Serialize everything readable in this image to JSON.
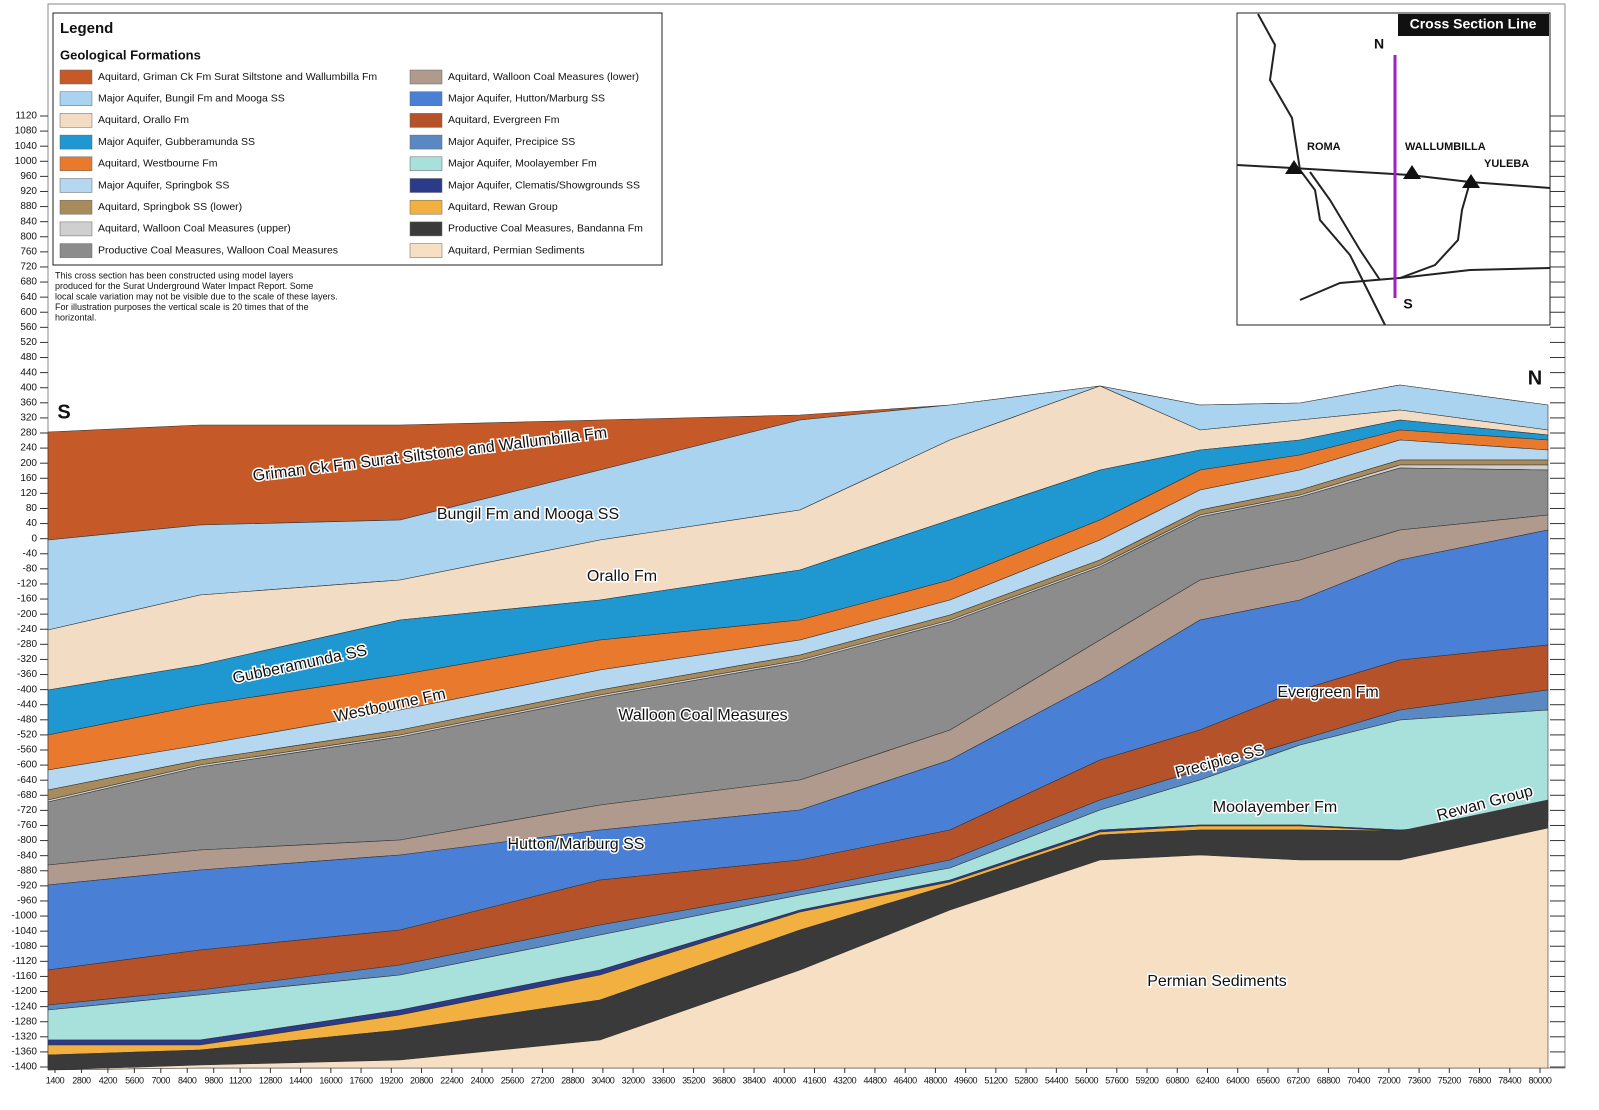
{
  "legend": {
    "title": "Legend",
    "heading": "Geological Formations",
    "items": [
      {
        "label": "Aquitard, Griman Ck Fm  Surat Siltstone and Wallumbilla Fm",
        "color": "#c55a28"
      },
      {
        "label": "Major Aquifer, Bungil Fm and Mooga SS",
        "color": "#a9d3ef"
      },
      {
        "label": "Aquitard, Orallo Fm",
        "color": "#f3dcc4"
      },
      {
        "label": "Major Aquifer, Gubberamunda SS",
        "color": "#1f97d0"
      },
      {
        "label": "Aquitard, Westbourne Fm",
        "color": "#e9792c"
      },
      {
        "label": "Major Aquifer, Springbok SS",
        "color": "#b5d8f0"
      },
      {
        "label": "Aquitard, Springbok SS (lower)",
        "color": "#a88b5c"
      },
      {
        "label": "Aquitard, Walloon Coal Measures (upper)",
        "color": "#cfcfcf"
      },
      {
        "label": "Productive Coal Measures, Walloon Coal Measures",
        "color": "#8c8c8c"
      },
      {
        "label": "Aquitard, Walloon Coal Measures (lower)",
        "color": "#b09a8e"
      },
      {
        "label": "Major Aquifer, Hutton/Marburg SS",
        "color": "#4a7fd6"
      },
      {
        "label": "Aquitard, Evergreen Fm",
        "color": "#b5522a"
      },
      {
        "label": "Major Aquifer, Precipice SS",
        "color": "#5a88c2"
      },
      {
        "label": "Major Aquifer, Moolayember Fm",
        "color": "#a8e0dc"
      },
      {
        "label": "Major Aquifer, Clematis/Showgrounds SS",
        "color": "#2c3a8a"
      },
      {
        "label": "Aquitard, Rewan Group",
        "color": "#f2b040"
      },
      {
        "label": "Productive Coal Measures, Bandanna Fm",
        "color": "#3a3a3a"
      },
      {
        "label": "Aquitard, Permian Sediments",
        "color": "#f6dfc2"
      }
    ]
  },
  "note": [
    "This cross section has been constructed using model layers",
    "produced for the Surat Underground Water Impact Report. Some",
    "local scale variation may not be visible due to the scale of these layers.",
    "For illustration purposes the vertical scale is 20 times that of the",
    "horizontal."
  ],
  "inset": {
    "title": "Cross Section Line",
    "north": "N",
    "south": "S",
    "towns": [
      "ROMA",
      "WALLUMBILLA",
      "YULEBA"
    ]
  },
  "section": {
    "south": "S",
    "north": "N",
    "labels": [
      "Griman Ck Fm  Surat Siltstone and Wallumbilla Fm",
      "Bungil Fm and Mooga SS",
      "Orallo Fm",
      "Gubberamunda SS",
      "Westbourne Fm",
      "Walloon Coal Measures",
      "Hutton/Marburg SS",
      "Evergreen Fm",
      "Precipice SS",
      "Moolayember Fm",
      "Rewan Group",
      "Permian Sediments"
    ]
  },
  "axes": {
    "yticks": [
      1120,
      1080,
      1040,
      1000,
      960,
      920,
      880,
      840,
      800,
      760,
      720,
      680,
      640,
      600,
      560,
      520,
      480,
      440,
      400,
      360,
      320,
      280,
      240,
      200,
      160,
      120,
      80,
      40,
      0,
      -40,
      -80,
      -120,
      -160,
      -200,
      -240,
      -280,
      -320,
      -360,
      -400,
      -440,
      -480,
      -520,
      -560,
      -600,
      -640,
      -680,
      -720,
      -760,
      -800,
      -840,
      -880,
      -920,
      -960,
      -1000,
      -1040,
      -1080,
      -1120,
      -1160,
      -1200,
      -1240,
      -1280,
      -1320,
      -1360,
      -1400
    ],
    "xticks": [
      1400,
      2800,
      4200,
      5600,
      7000,
      8400,
      9800,
      11200,
      12800,
      14400,
      16000,
      17600,
      19200,
      20800,
      22400,
      24000,
      25600,
      27200,
      28800,
      30400,
      32000,
      33600,
      35200,
      36800,
      38400,
      40000,
      41600,
      43200,
      44800,
      46400,
      48000,
      49600,
      51200,
      52800,
      54400,
      56000,
      57600,
      59200,
      60800,
      62400,
      64000,
      65600,
      67200,
      68800,
      70400,
      72000,
      73600,
      75200,
      76800,
      78400,
      80000
    ]
  }
}
